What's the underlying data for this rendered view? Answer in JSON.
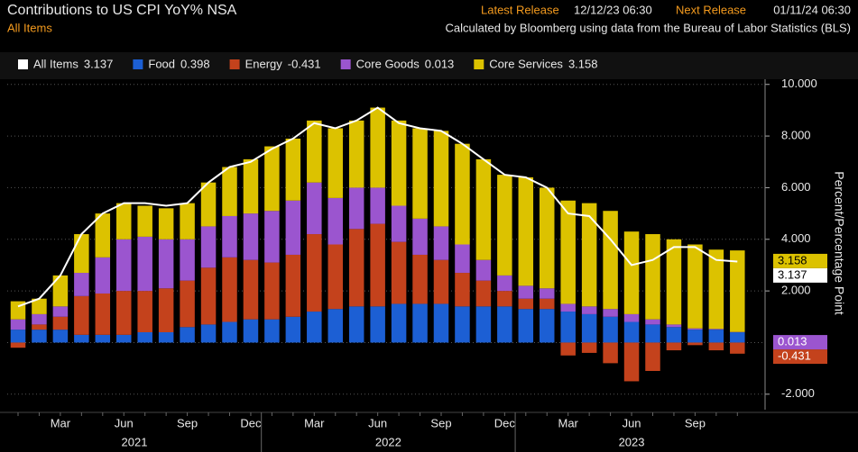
{
  "chart_data": {
    "type": "stacked_bar_line",
    "title": "Contributions to US CPI YoY% NSA",
    "subtitle": "All Items",
    "release": {
      "latest_label": "Latest Release",
      "latest": "12/12/23 06:30",
      "next_label": "Next Release",
      "next": "01/11/24 06:30"
    },
    "source": "Calculated by Bloomberg using data from the Bureau of Labor Statistics (BLS)",
    "y_axis_label": "Percent/Percentage Point",
    "categories": [
      null,
      null,
      "Mar",
      null,
      null,
      "Jun",
      null,
      null,
      "Sep",
      null,
      null,
      "Dec",
      null,
      null,
      "Mar",
      null,
      null,
      "Jun",
      null,
      null,
      "Sep",
      null,
      null,
      "Dec",
      null,
      null,
      "Mar",
      null,
      null,
      "Jun",
      null,
      null,
      "Sep",
      null,
      null
    ],
    "years": [
      {
        "label": "2021",
        "start": 0,
        "end": 11
      },
      {
        "label": "2022",
        "start": 12,
        "end": 23
      },
      {
        "label": "2023",
        "start": 24,
        "end": 34
      }
    ],
    "ylim": [
      -2.6,
      10.2
    ],
    "yticks": [
      {
        "value": -2,
        "label": "-2.000"
      },
      {
        "value": 2,
        "label": "2.000"
      },
      {
        "value": 4,
        "label": "4.000"
      },
      {
        "value": 6,
        "label": "6.000"
      },
      {
        "value": 8,
        "label": "8.000"
      },
      {
        "value": 10,
        "label": "10.000"
      }
    ],
    "grid": true,
    "series": [
      {
        "name": "All Items",
        "kind": "line",
        "color": "#ffffff",
        "last_label": "3.137",
        "tag": true,
        "values": [
          1.4,
          1.7,
          2.6,
          4.2,
          5.0,
          5.4,
          5.4,
          5.3,
          5.4,
          6.2,
          6.8,
          7.0,
          7.5,
          7.9,
          8.5,
          8.3,
          8.6,
          9.1,
          8.5,
          8.3,
          8.2,
          7.7,
          7.1,
          6.5,
          6.4,
          6.0,
          5.0,
          4.9,
          4.0,
          3.0,
          3.2,
          3.7,
          3.7,
          3.2,
          3.137
        ]
      },
      {
        "name": "Food",
        "kind": "bar",
        "color": "#1c5fd4",
        "last_label": "0.398",
        "tag": false,
        "values": [
          0.5,
          0.5,
          0.5,
          0.3,
          0.3,
          0.3,
          0.4,
          0.4,
          0.6,
          0.7,
          0.8,
          0.9,
          0.9,
          1.0,
          1.2,
          1.3,
          1.4,
          1.4,
          1.5,
          1.5,
          1.5,
          1.4,
          1.4,
          1.4,
          1.3,
          1.3,
          1.2,
          1.1,
          1.0,
          0.8,
          0.7,
          0.6,
          0.5,
          0.5,
          0.398
        ]
      },
      {
        "name": "Energy",
        "kind": "bar",
        "color": "#c4421c",
        "last_label": "-0.431",
        "tag": true,
        "values": [
          -0.2,
          0.2,
          0.5,
          1.5,
          1.6,
          1.7,
          1.6,
          1.7,
          1.8,
          2.2,
          2.5,
          2.3,
          2.2,
          2.4,
          3.0,
          2.5,
          3.0,
          3.2,
          2.4,
          1.9,
          1.7,
          1.3,
          1.0,
          0.6,
          0.4,
          0.4,
          -0.5,
          -0.4,
          -0.8,
          -1.5,
          -1.1,
          -0.3,
          -0.1,
          -0.3,
          -0.431
        ]
      },
      {
        "name": "Core Goods",
        "kind": "bar",
        "color": "#9b55cf",
        "last_label": "0.013",
        "tag": true,
        "values": [
          0.4,
          0.4,
          0.4,
          0.9,
          1.4,
          2.0,
          2.1,
          1.9,
          1.6,
          1.6,
          1.6,
          1.8,
          2.0,
          2.1,
          2.0,
          1.8,
          1.6,
          1.4,
          1.4,
          1.4,
          1.3,
          1.1,
          0.8,
          0.6,
          0.5,
          0.4,
          0.3,
          0.3,
          0.3,
          0.3,
          0.2,
          0.1,
          0.05,
          0.03,
          0.013
        ]
      },
      {
        "name": "Core Services",
        "kind": "bar",
        "color": "#dcc200",
        "last_label": "3.158",
        "tag": true,
        "values": [
          0.7,
          0.6,
          1.2,
          1.5,
          1.7,
          1.4,
          1.2,
          1.2,
          1.4,
          1.7,
          1.9,
          2.1,
          2.5,
          2.4,
          2.4,
          2.7,
          2.6,
          3.1,
          3.3,
          3.5,
          3.7,
          3.9,
          3.9,
          3.9,
          4.2,
          3.9,
          4.0,
          4.0,
          3.8,
          3.2,
          3.3,
          3.3,
          3.25,
          3.07,
          3.158
        ]
      }
    ]
  }
}
